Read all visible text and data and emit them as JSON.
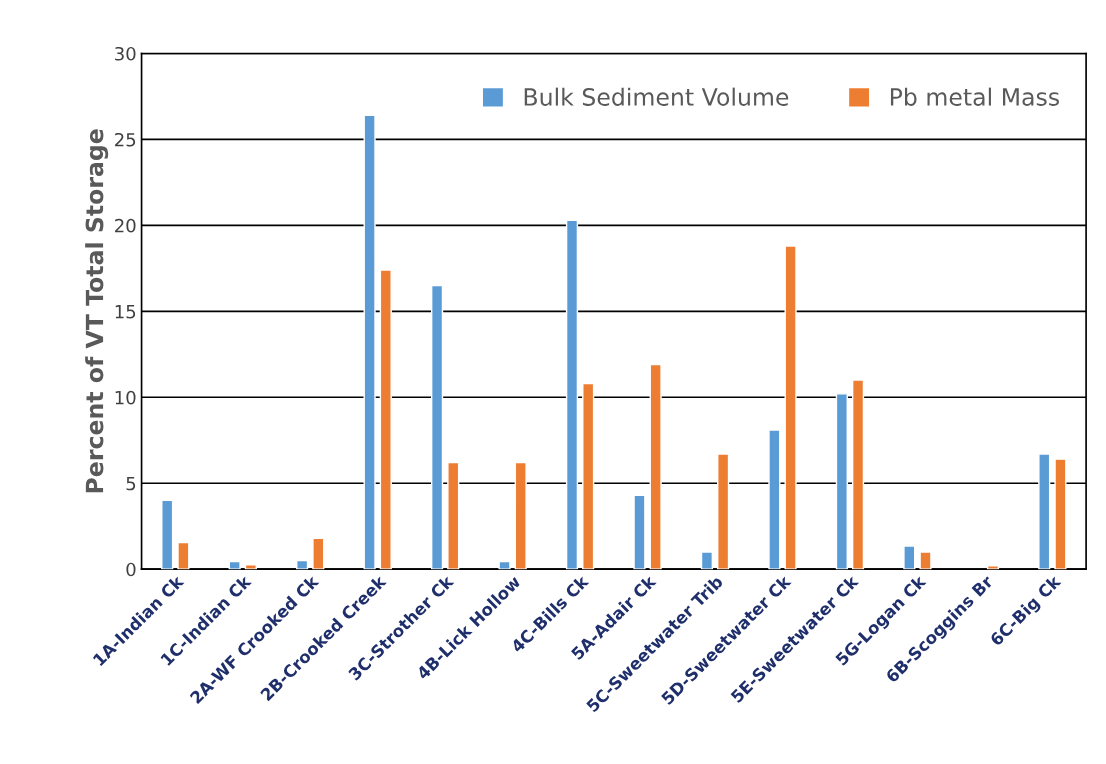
{
  "chart_data": {
    "type": "bar",
    "ylabel": "Percent of VT Total Storage",
    "categories": [
      "1A-Indian Ck",
      "1C-Indian Ck",
      "2A-WF Crooked Ck",
      "2B-Crooked Creek",
      "3C-Strother Ck",
      "4B-Lick Hollow",
      "4C-Bills Ck",
      "5A-Adair Ck",
      "5C-Sweetwater Trib",
      "5D-Sweetwater Ck",
      "5E-Sweetwater Ck",
      "5G-Logan Ck",
      "6B-Scoggins Br",
      "6C-Big Ck"
    ],
    "series": [
      {
        "name": "Bulk Sediment Volume",
        "color": "#5b9bd5",
        "values": [
          4.0,
          0.45,
          0.5,
          26.4,
          16.5,
          0.45,
          20.3,
          4.3,
          1.0,
          8.1,
          10.2,
          1.35,
          null,
          6.7
        ]
      },
      {
        "name": "Pb metal Mass",
        "color": "#ed7d31",
        "values": [
          1.55,
          0.25,
          1.8,
          17.4,
          6.2,
          6.2,
          10.8,
          11.9,
          6.7,
          18.8,
          11.0,
          1.0,
          0.2,
          6.4
        ]
      }
    ],
    "ylim": [
      0,
      30
    ],
    "yticks": [
      0,
      5,
      10,
      15,
      20,
      25,
      30
    ],
    "grid": "y",
    "legend": "top right"
  }
}
